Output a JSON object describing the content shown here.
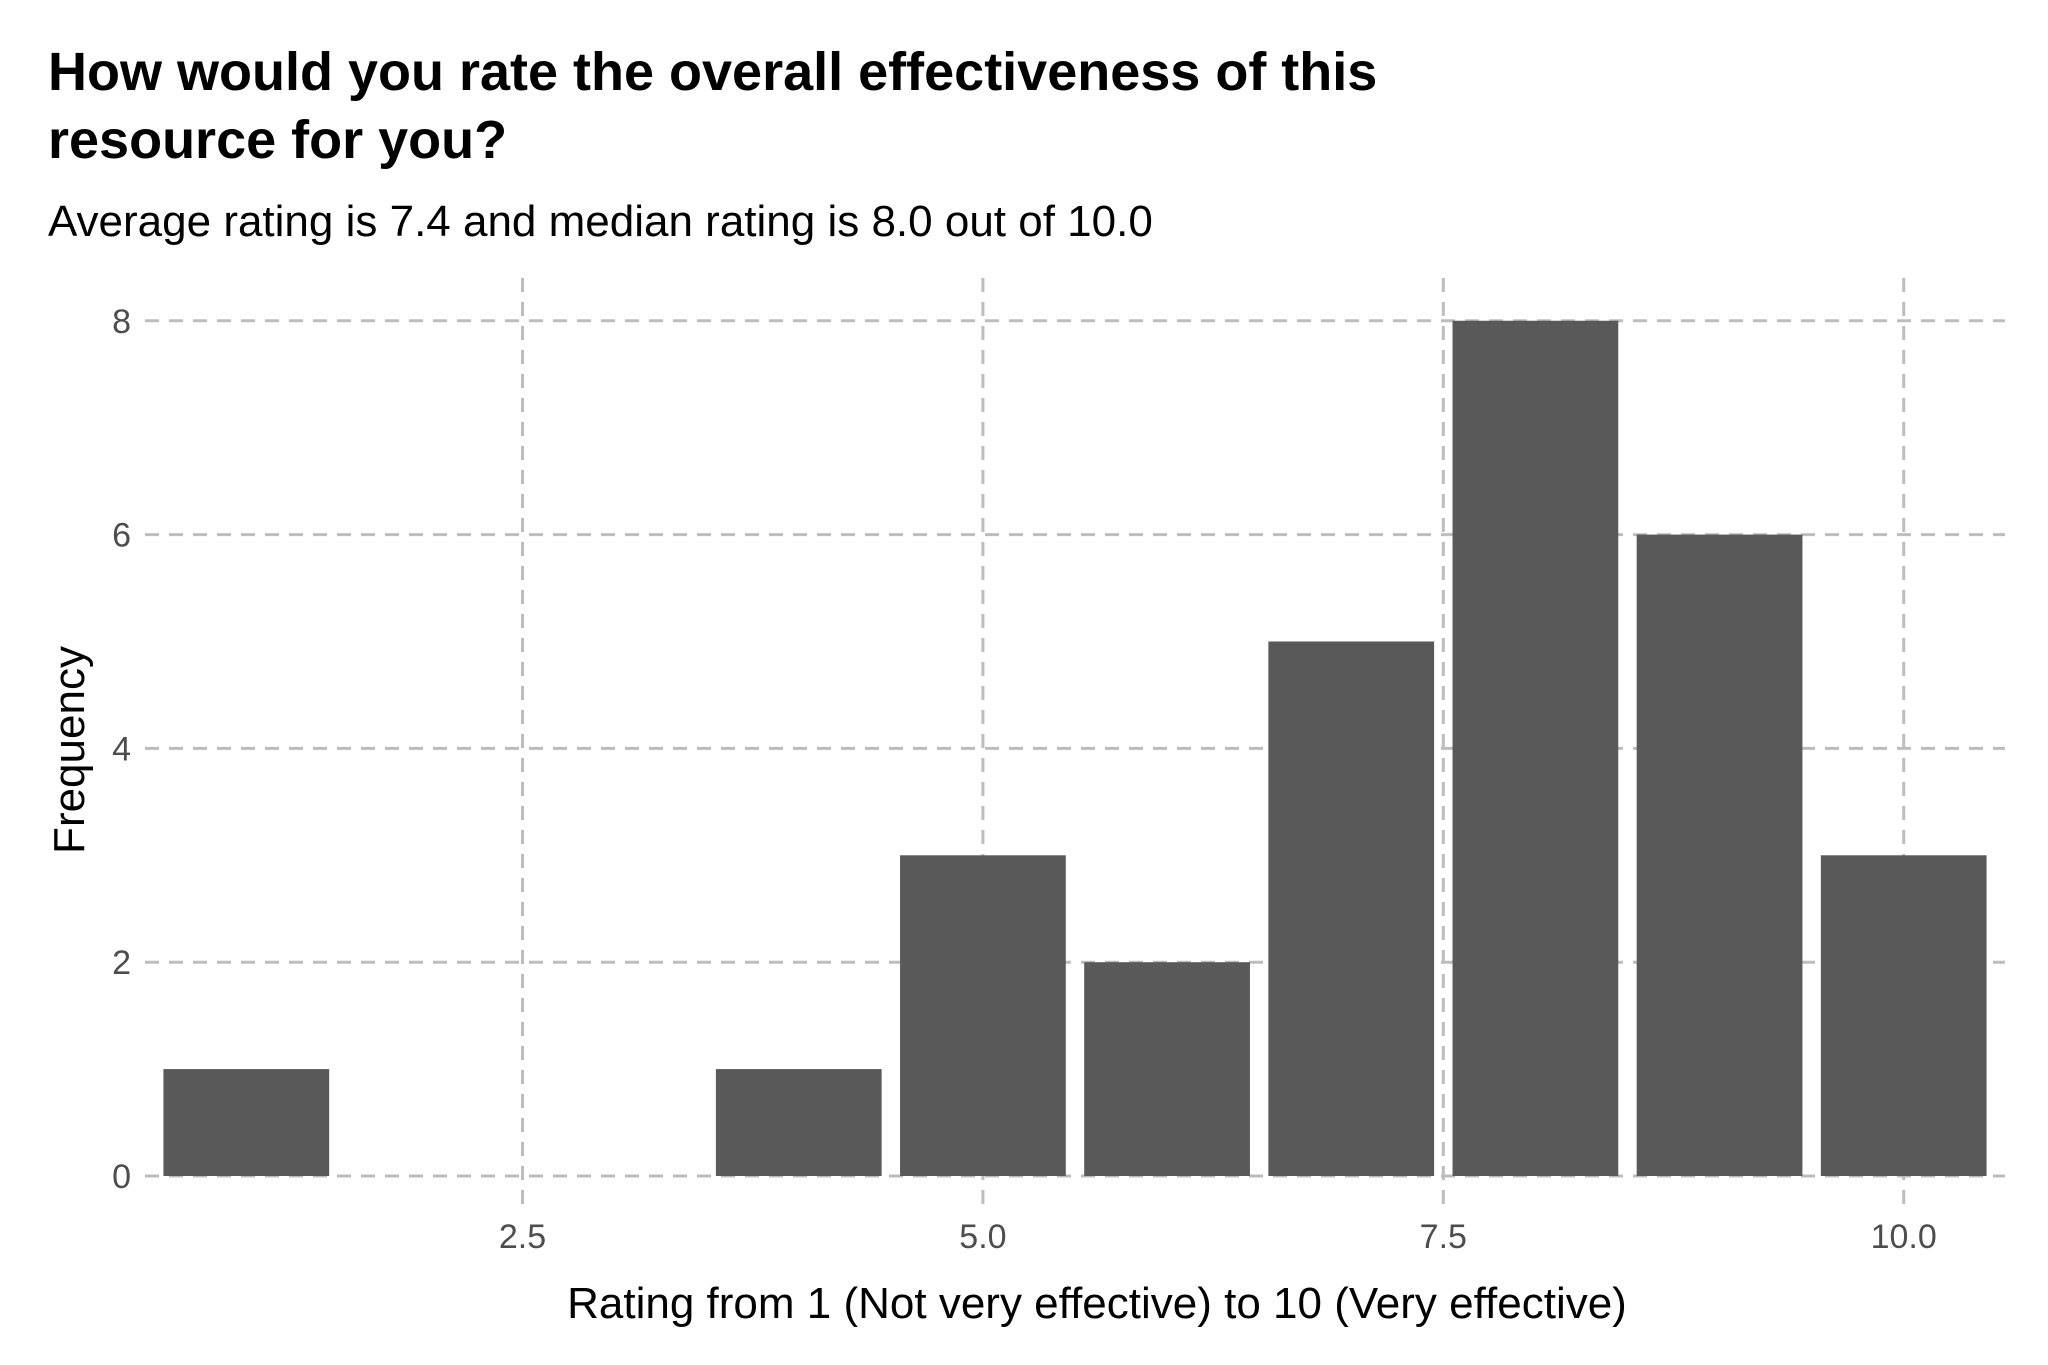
{
  "chart_data": {
    "type": "bar",
    "title_lines": [
      "How would you rate the overall effectiveness of this",
      "resource for you?"
    ],
    "subtitle": "Average rating is 7.4 and median rating is 8.0 out of 10.0",
    "xlabel": "Rating from 1 (Not very effective) to 10 (Very effective)",
    "ylabel": "Frequency",
    "x": [
      1,
      2,
      3,
      4,
      5,
      6,
      7,
      8,
      9,
      10
    ],
    "values": [
      1,
      0,
      0,
      1,
      3,
      2,
      5,
      8,
      6,
      3
    ],
    "xlim": [
      0.45,
      10.55
    ],
    "ylim": [
      0,
      8.4
    ],
    "x_ticks": [
      2.5,
      5.0,
      7.5,
      10.0
    ],
    "x_tick_labels": [
      "2.5",
      "5.0",
      "7.5",
      "10.0"
    ],
    "y_ticks": [
      0,
      2,
      4,
      6,
      8
    ],
    "y_tick_labels": [
      "0",
      "2",
      "4",
      "6",
      "8"
    ],
    "grid": "dashed",
    "legend": "none",
    "bar_color": "#595959",
    "grid_color": "#bdbdbd"
  }
}
